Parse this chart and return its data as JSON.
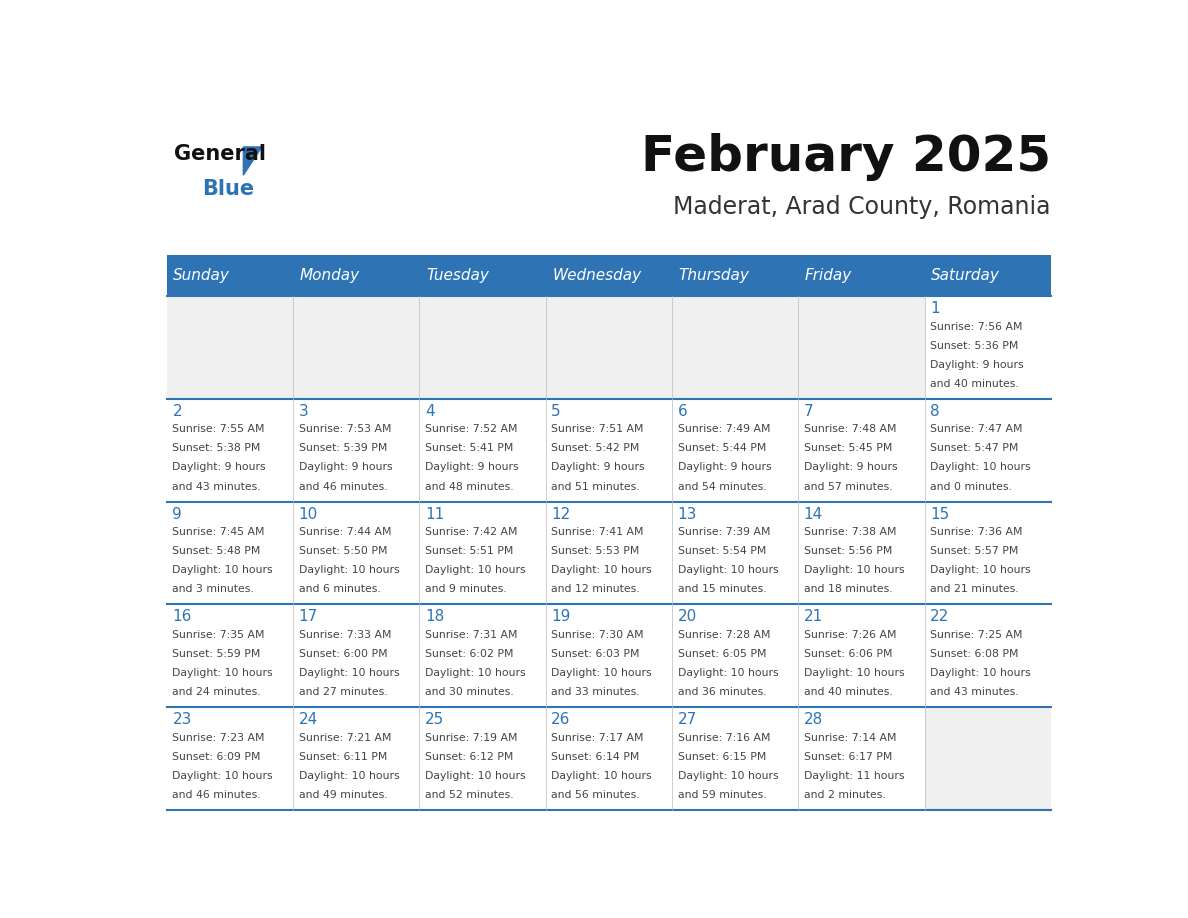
{
  "title": "February 2025",
  "subtitle": "Maderat, Arad County, Romania",
  "header_bg": "#2E74B5",
  "header_text_color": "#FFFFFF",
  "days_of_week": [
    "Sunday",
    "Monday",
    "Tuesday",
    "Wednesday",
    "Thursday",
    "Friday",
    "Saturday"
  ],
  "cell_bg_light": "#F0F0F0",
  "cell_bg_white": "#FFFFFF",
  "divider_color": "#2E74B5",
  "day_number_color": "#2E74B5",
  "text_color": "#444444",
  "calendar": [
    [
      null,
      null,
      null,
      null,
      null,
      null,
      1
    ],
    [
      2,
      3,
      4,
      5,
      6,
      7,
      8
    ],
    [
      9,
      10,
      11,
      12,
      13,
      14,
      15
    ],
    [
      16,
      17,
      18,
      19,
      20,
      21,
      22
    ],
    [
      23,
      24,
      25,
      26,
      27,
      28,
      null
    ]
  ],
  "sun_data": {
    "1": {
      "rise": "7:56 AM",
      "set": "5:36 PM",
      "daylight": "9 hours and 40 minutes."
    },
    "2": {
      "rise": "7:55 AM",
      "set": "5:38 PM",
      "daylight": "9 hours and 43 minutes."
    },
    "3": {
      "rise": "7:53 AM",
      "set": "5:39 PM",
      "daylight": "9 hours and 46 minutes."
    },
    "4": {
      "rise": "7:52 AM",
      "set": "5:41 PM",
      "daylight": "9 hours and 48 minutes."
    },
    "5": {
      "rise": "7:51 AM",
      "set": "5:42 PM",
      "daylight": "9 hours and 51 minutes."
    },
    "6": {
      "rise": "7:49 AM",
      "set": "5:44 PM",
      "daylight": "9 hours and 54 minutes."
    },
    "7": {
      "rise": "7:48 AM",
      "set": "5:45 PM",
      "daylight": "9 hours and 57 minutes."
    },
    "8": {
      "rise": "7:47 AM",
      "set": "5:47 PM",
      "daylight": "10 hours and 0 minutes."
    },
    "9": {
      "rise": "7:45 AM",
      "set": "5:48 PM",
      "daylight": "10 hours and 3 minutes."
    },
    "10": {
      "rise": "7:44 AM",
      "set": "5:50 PM",
      "daylight": "10 hours and 6 minutes."
    },
    "11": {
      "rise": "7:42 AM",
      "set": "5:51 PM",
      "daylight": "10 hours and 9 minutes."
    },
    "12": {
      "rise": "7:41 AM",
      "set": "5:53 PM",
      "daylight": "10 hours and 12 minutes."
    },
    "13": {
      "rise": "7:39 AM",
      "set": "5:54 PM",
      "daylight": "10 hours and 15 minutes."
    },
    "14": {
      "rise": "7:38 AM",
      "set": "5:56 PM",
      "daylight": "10 hours and 18 minutes."
    },
    "15": {
      "rise": "7:36 AM",
      "set": "5:57 PM",
      "daylight": "10 hours and 21 minutes."
    },
    "16": {
      "rise": "7:35 AM",
      "set": "5:59 PM",
      "daylight": "10 hours and 24 minutes."
    },
    "17": {
      "rise": "7:33 AM",
      "set": "6:00 PM",
      "daylight": "10 hours and 27 minutes."
    },
    "18": {
      "rise": "7:31 AM",
      "set": "6:02 PM",
      "daylight": "10 hours and 30 minutes."
    },
    "19": {
      "rise": "7:30 AM",
      "set": "6:03 PM",
      "daylight": "10 hours and 33 minutes."
    },
    "20": {
      "rise": "7:28 AM",
      "set": "6:05 PM",
      "daylight": "10 hours and 36 minutes."
    },
    "21": {
      "rise": "7:26 AM",
      "set": "6:06 PM",
      "daylight": "10 hours and 40 minutes."
    },
    "22": {
      "rise": "7:25 AM",
      "set": "6:08 PM",
      "daylight": "10 hours and 43 minutes."
    },
    "23": {
      "rise": "7:23 AM",
      "set": "6:09 PM",
      "daylight": "10 hours and 46 minutes."
    },
    "24": {
      "rise": "7:21 AM",
      "set": "6:11 PM",
      "daylight": "10 hours and 49 minutes."
    },
    "25": {
      "rise": "7:19 AM",
      "set": "6:12 PM",
      "daylight": "10 hours and 52 minutes."
    },
    "26": {
      "rise": "7:17 AM",
      "set": "6:14 PM",
      "daylight": "10 hours and 56 minutes."
    },
    "27": {
      "rise": "7:16 AM",
      "set": "6:15 PM",
      "daylight": "10 hours and 59 minutes."
    },
    "28": {
      "rise": "7:14 AM",
      "set": "6:17 PM",
      "daylight": "11 hours and 2 minutes."
    }
  },
  "logo_text_general": "General",
  "logo_text_blue": "Blue"
}
